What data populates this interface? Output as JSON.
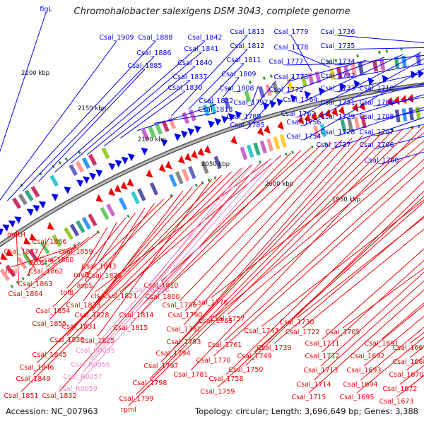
{
  "title": "Chromohalobacter salexigens DSM 3043, complete genome",
  "accession": "Accession: NC_007963",
  "summary": "Topology: circular; Length: 3,696,649 bp; Genes: 3,388",
  "colors": {
    "forward": "#0000ee",
    "reverse": "#ee0000",
    "rna": "#ee88cc",
    "backbone": "#888888",
    "marker": "#2a9a2a"
  },
  "kbp_markers": [
    "2200 kbp",
    "2150 kbp",
    "2100 kbp",
    "2050 kbp",
    "2000 kbp",
    "1950 kbp"
  ],
  "forward_labels": [
    "flgL",
    "Csal_1909",
    "Csal_1888",
    "Csal_1886",
    "Csal_1885",
    "Csal_1842",
    "Csal_1841",
    "Csal_1840",
    "Csal_1837",
    "Csal_1830",
    "Csal_1822",
    "Csal_1818",
    "Csal_1813",
    "Csal_1812",
    "Csal_1811",
    "Csal_1809",
    "Csal_1808",
    "Csal_1792",
    "Csal_1789",
    "Csal_1785",
    "Csal_1779",
    "Csal_1778",
    "Csal_1777",
    "Csal_1773",
    "Csal_1772",
    "Csal_1764",
    "Csal_1762",
    "Csal_1756",
    "Csal_1754",
    "Csal_1736",
    "Csal_1735",
    "Csal_1734",
    "Csal_1732",
    "Csal_1733",
    "Csal_1731",
    "Csal_1729",
    "Csal_1728",
    "Csal_1727",
    "Csal_1710",
    "Csal_1709",
    "Csal_1708",
    "Csal_1707",
    "Csal_1706",
    "Csal_1700"
  ],
  "reverse_labels": [
    "metH",
    "Csal_1866",
    "Csal_1877",
    "ectC",
    "Csal_1860",
    "Csal_1859",
    "hisI",
    "Csal_1862",
    "Csal_1863",
    "Csal_1864",
    "ruvB",
    "aspS",
    "tolB",
    "Csal_1843",
    "Csal_1829",
    "Csal_1833",
    "Csal_1854",
    "Csal_1855",
    "Csal_1828",
    "Csal_1831",
    "Csal_1838",
    "Csal_1825",
    "Csal_1845",
    "Csal_1846",
    "Csal_1849",
    "Csal_1851",
    "Csal_1832",
    "cls",
    "Csal_1821",
    "Csal_1814",
    "Csal_1815",
    "Csal_1810",
    "Csal_1800",
    "Csal_1796",
    "Csal_1790",
    "Csal_1791",
    "Csal_1793",
    "Csal_1794",
    "Csal_1797",
    "Csal_1798",
    "Csal_1799",
    "rpmI",
    "Csal_1781",
    "Csal_1776",
    "Csal_1765",
    "Csal_1757",
    "Csal_1761",
    "Csal_1770",
    "Csal_1758",
    "Csal_1750",
    "Csal_1759",
    "Csal_1749",
    "Csal_1743",
    "Csal_1739",
    "Csal_1730",
    "Csal_1722",
    "Csal_1711",
    "Csal_1712",
    "Csal_1713",
    "Csal_1714",
    "Csal_1715",
    "Csal_1705",
    "Csal_1691",
    "Csal_1692",
    "Csal_1693",
    "Csal_1694",
    "Csal_1695",
    "Csal_1667",
    "Csal_1668",
    "Csal_1670",
    "Csal_1672",
    "Csal_1673"
  ],
  "rna_labels": [
    "Csal_R0058",
    "Csal_R0055",
    "Csal_R0056",
    "Csal_R0057",
    "Csal_R0059"
  ]
}
